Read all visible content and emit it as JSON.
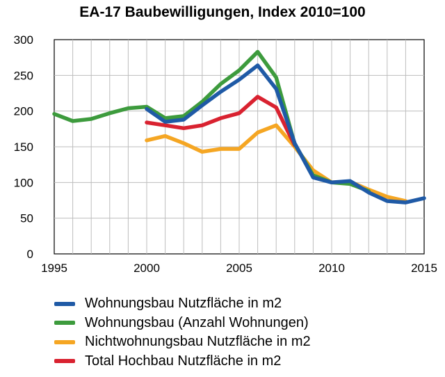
{
  "chart_data": {
    "type": "line",
    "title": "EA-17 Baubewilligungen, Index 2010=100",
    "xlabel": "",
    "ylabel": "",
    "xlim": [
      1995,
      2015
    ],
    "ylim": [
      0,
      300
    ],
    "x_ticks": [
      "1995",
      "2000",
      "2005",
      "2010",
      "2015"
    ],
    "y_ticks": [
      "0",
      "50",
      "100",
      "150",
      "200",
      "250",
      "300"
    ],
    "grid": "vertical and horizontal",
    "legend_position": "bottom",
    "series": [
      {
        "name": "Nichtwohnungsbau Nutzfläche in m2",
        "color": "#f5a623",
        "x": [
          2000,
          2001,
          2002,
          2003,
          2004,
          2005,
          2006,
          2007,
          2008,
          2009,
          2010,
          2011,
          2012,
          2013,
          2014
        ],
        "values": [
          159,
          165,
          155,
          143,
          147,
          147,
          170,
          180,
          150,
          117,
          100,
          101,
          90,
          80,
          74
        ]
      },
      {
        "name": "Total Hochbau Nutzfläche in m2",
        "color": "#d92230",
        "x": [
          2000,
          2001,
          2002,
          2003,
          2004,
          2005,
          2006,
          2007,
          2008
        ],
        "values": [
          184,
          180,
          176,
          180,
          190,
          197,
          220,
          205,
          152
        ]
      },
      {
        "name": "Wohnungsbau (Anzahl Wohnungen)",
        "color": "#3d9b3d",
        "x": [
          1995,
          1996,
          1997,
          1998,
          1999,
          2000,
          2001,
          2002,
          2003,
          2004,
          2005,
          2006,
          2007,
          2008,
          2009,
          2010,
          2011,
          2012
        ],
        "values": [
          196,
          186,
          189,
          197,
          204,
          206,
          190,
          193,
          213,
          238,
          257,
          283,
          247,
          154,
          110,
          100,
          98,
          88
        ]
      },
      {
        "name": "Wohnungsbau Nutzfläche in m2",
        "color": "#1f5aa6",
        "x": [
          2000,
          2001,
          2002,
          2003,
          2004,
          2005,
          2006,
          2007,
          2008,
          2009,
          2010,
          2011,
          2012,
          2013,
          2014,
          2015
        ],
        "values": [
          203,
          185,
          188,
          208,
          227,
          244,
          264,
          231,
          155,
          107,
          100,
          102,
          86,
          74,
          72,
          78
        ]
      }
    ],
    "legend": [
      {
        "label": "Wohnungsbau Nutzfläche in m2",
        "color": "#1f5aa6"
      },
      {
        "label": "Wohnungsbau (Anzahl Wohnungen)",
        "color": "#3d9b3d"
      },
      {
        "label": "Nichtwohnungsbau Nutzfläche in m2",
        "color": "#f5a623"
      },
      {
        "label": "Total Hochbau Nutzfläche in m2",
        "color": "#d92230"
      }
    ]
  }
}
